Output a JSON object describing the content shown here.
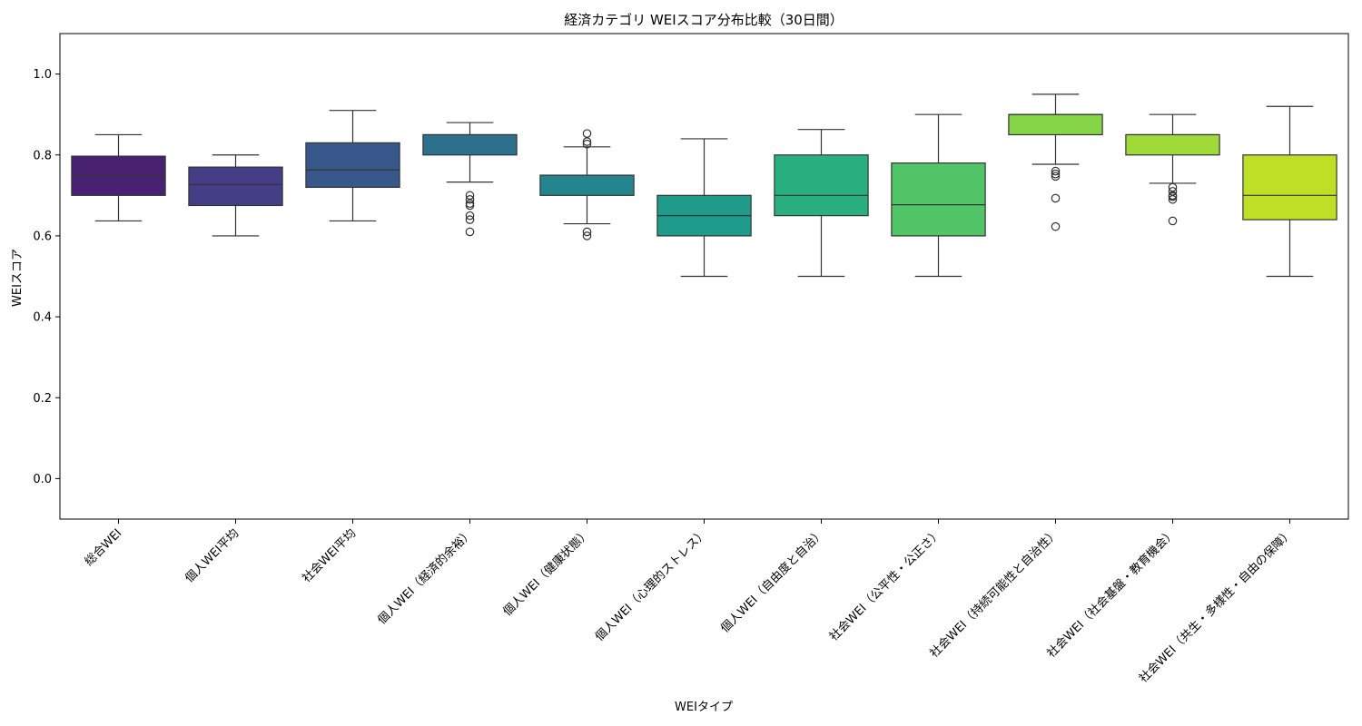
{
  "chart_data": {
    "type": "box",
    "title": "経済カテゴリ WEIスコア分布比較（30日間）",
    "xlabel": "WEIタイプ",
    "ylabel": "WEIスコア",
    "ylim": [
      -0.1,
      1.1
    ],
    "yticks": [
      0.0,
      0.2,
      0.4,
      0.6,
      0.8,
      1.0
    ],
    "grid": false,
    "legend": "none",
    "categories": [
      "総合WEI",
      "個人WEI平均",
      "社会WEI平均",
      "個人WEI（経済的余裕）",
      "個人WEI（健康状態）",
      "個人WEI（心理的ストレス）",
      "個人WEI（自由度と自治）",
      "社会WEI（公平性・公正さ）",
      "社会WEI（持続可能性と自治性）",
      "社会WEI（社会基盤・教育機会）",
      "社会WEI（共生・多様性・自由の保障）"
    ],
    "boxes": [
      {
        "whisker_low": 0.637,
        "q1": 0.7,
        "median": 0.75,
        "q3": 0.797,
        "whisker_high": 0.85,
        "outliers": [],
        "color": "#482173"
      },
      {
        "whisker_low": 0.6,
        "q1": 0.675,
        "median": 0.727,
        "q3": 0.77,
        "whisker_high": 0.8,
        "outliers": [],
        "color": "#433e85"
      },
      {
        "whisker_low": 0.637,
        "q1": 0.72,
        "median": 0.763,
        "q3": 0.83,
        "whisker_high": 0.91,
        "outliers": [],
        "color": "#38588c"
      },
      {
        "whisker_low": 0.733,
        "q1": 0.8,
        "median": 0.85,
        "q3": 0.85,
        "whisker_high": 0.88,
        "outliers": [
          0.7,
          0.69,
          0.68,
          0.675,
          0.65,
          0.64,
          0.61
        ],
        "color": "#2d708e"
      },
      {
        "whisker_low": 0.63,
        "q1": 0.7,
        "median": 0.75,
        "q3": 0.75,
        "whisker_high": 0.82,
        "outliers": [
          0.853,
          0.833,
          0.827,
          0.61,
          0.6
        ],
        "color": "#25858e"
      },
      {
        "whisker_low": 0.5,
        "q1": 0.6,
        "median": 0.65,
        "q3": 0.7,
        "whisker_high": 0.84,
        "outliers": [],
        "color": "#1e9b8a"
      },
      {
        "whisker_low": 0.5,
        "q1": 0.65,
        "median": 0.7,
        "q3": 0.8,
        "whisker_high": 0.863,
        "outliers": [],
        "color": "#2ab07f"
      },
      {
        "whisker_low": 0.5,
        "q1": 0.6,
        "median": 0.677,
        "q3": 0.78,
        "whisker_high": 0.9,
        "outliers": [],
        "color": "#52c569"
      },
      {
        "whisker_low": 0.777,
        "q1": 0.85,
        "median": 0.9,
        "q3": 0.9,
        "whisker_high": 0.95,
        "outliers": [
          0.76,
          0.753,
          0.747,
          0.693,
          0.623
        ],
        "color": "#86d549"
      },
      {
        "whisker_low": 0.73,
        "q1": 0.8,
        "median": 0.85,
        "q3": 0.85,
        "whisker_high": 0.9,
        "outliers": [
          0.72,
          0.71,
          0.7,
          0.697,
          0.69,
          0.637
        ],
        "color": "#a0da39"
      },
      {
        "whisker_low": 0.5,
        "q1": 0.64,
        "median": 0.7,
        "q3": 0.8,
        "whisker_high": 0.92,
        "outliers": [],
        "color": "#bddf26"
      }
    ]
  }
}
